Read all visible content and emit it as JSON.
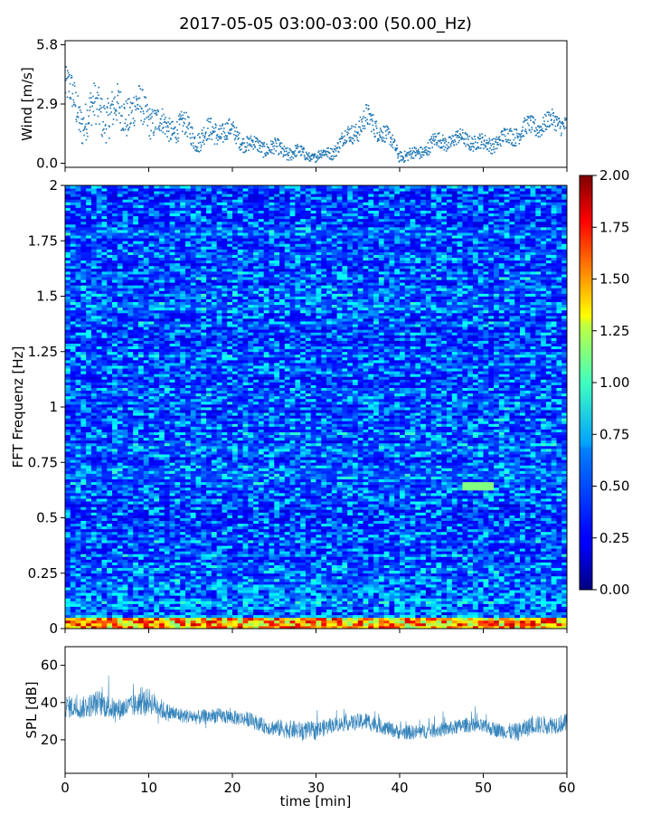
{
  "figure": {
    "title": "2017-05-05 03:00-03:00 (50.00_Hz)"
  },
  "chart_data": [
    {
      "type": "scatter",
      "ylabel": "Wind [m/s]",
      "xlabel": "",
      "xlim": [
        0,
        60
      ],
      "ylim": [
        -0.2,
        6.0
      ],
      "yticks": [
        "0.0",
        "2.9",
        "5.8"
      ],
      "ytick_values": [
        0.0,
        2.9,
        5.8
      ],
      "marker_color": "#1f77b4",
      "x_min": [
        0,
        2,
        4,
        6,
        8,
        10,
        12,
        14,
        16,
        18,
        20,
        22,
        24,
        26,
        28,
        30,
        32,
        34,
        36,
        38,
        40,
        42,
        44,
        46,
        48,
        50,
        52,
        54,
        56,
        58,
        60
      ],
      "wind_mean": [
        3.8,
        2.2,
        2.6,
        2.4,
        2.7,
        2.4,
        1.7,
        1.8,
        1.2,
        1.6,
        1.5,
        0.9,
        0.8,
        0.6,
        0.5,
        0.3,
        0.6,
        1.4,
        2.1,
        1.6,
        0.4,
        0.4,
        1.0,
        1.1,
        1.2,
        0.9,
        1.1,
        1.5,
        1.8,
        2.0,
        2.0
      ],
      "wind_spread": [
        1.2,
        1.3,
        1.4,
        1.4,
        1.3,
        1.1,
        0.8,
        0.8,
        0.7,
        0.8,
        0.6,
        0.5,
        0.5,
        0.5,
        0.4,
        0.3,
        0.4,
        0.6,
        0.8,
        0.6,
        0.4,
        0.4,
        0.5,
        0.5,
        0.5,
        0.5,
        0.5,
        0.6,
        0.6,
        0.6,
        0.6
      ]
    },
    {
      "type": "heatmap",
      "ylabel": "FFT Frequenz [Hz]",
      "xlabel": "",
      "xlim": [
        0,
        60
      ],
      "ylim": [
        0,
        2
      ],
      "yticks": [
        "0",
        "0.25",
        "0.5",
        "0.75",
        "1",
        "1.25",
        "1.5",
        "1.75",
        "2"
      ],
      "ytick_values": [
        0,
        0.25,
        0.5,
        0.75,
        1,
        1.25,
        1.5,
        1.75,
        2
      ],
      "colorscale": "jet",
      "colorbar_range": [
        0.0,
        2.0
      ],
      "colorbar_ticks": [
        "0.00",
        "0.25",
        "0.50",
        "0.75",
        "1.00",
        "1.25",
        "1.50",
        "1.75",
        "2.00"
      ],
      "colorbar_tick_values": [
        0.0,
        0.25,
        0.5,
        0.75,
        1.0,
        1.25,
        1.5,
        1.75,
        2.0
      ],
      "typical_value": 0.3,
      "low_frequency_band": {
        "f_max": 0.05,
        "typical_value": 1.3
      },
      "hot_spot": {
        "t_start": 47.5,
        "t_end": 51.5,
        "f_start": 0.63,
        "f_end": 0.66,
        "value": 1.0
      }
    },
    {
      "type": "line",
      "ylabel": "SPL [dB]",
      "xlabel": "time [min]",
      "xlim": [
        0,
        60
      ],
      "ylim": [
        2,
        70
      ],
      "yticks": [
        "20",
        "40",
        "60"
      ],
      "ytick_values": [
        20,
        40,
        60
      ],
      "xticks": [
        "0",
        "10",
        "20",
        "30",
        "40",
        "50",
        "60"
      ],
      "xtick_values": [
        0,
        10,
        20,
        30,
        40,
        50,
        60
      ],
      "line_color": "#1f77b4",
      "x_min": [
        0,
        2,
        4,
        6,
        8,
        10,
        12,
        14,
        16,
        18,
        20,
        22,
        24,
        26,
        28,
        30,
        32,
        34,
        36,
        38,
        40,
        42,
        44,
        46,
        48,
        50,
        52,
        54,
        56,
        58,
        60
      ],
      "spl_mean": [
        38,
        37,
        40,
        36,
        38,
        41,
        35,
        33,
        32,
        33,
        32,
        31,
        27,
        26,
        25,
        25,
        28,
        29,
        30,
        27,
        24,
        24,
        25,
        26,
        28,
        27,
        25,
        24,
        28,
        28,
        29
      ],
      "spl_spread": [
        6,
        6,
        7,
        6,
        6,
        7,
        5,
        4,
        4,
        4,
        4,
        4,
        4,
        5,
        5,
        5,
        4,
        4,
        5,
        4,
        4,
        4,
        4,
        4,
        4,
        4,
        4,
        5,
        5,
        5,
        5
      ]
    }
  ]
}
